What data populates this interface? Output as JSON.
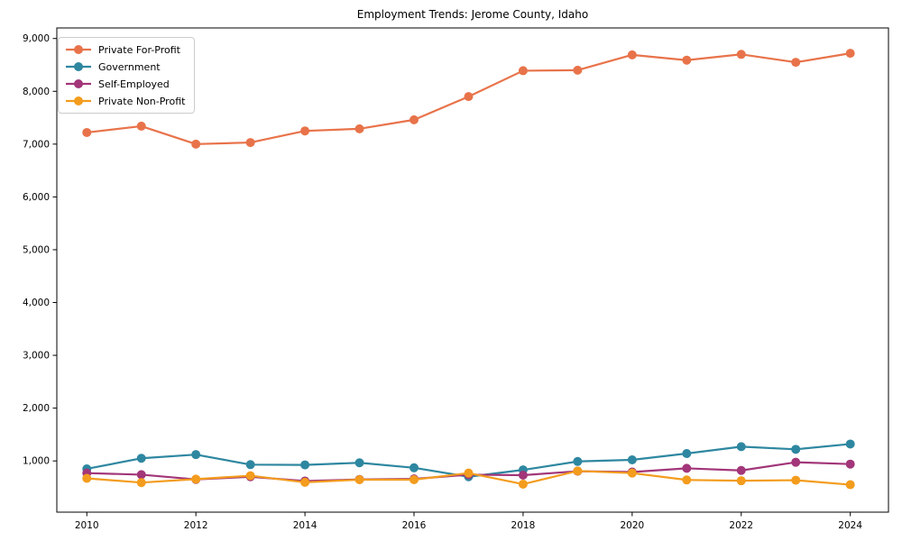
{
  "chart_data": {
    "type": "line",
    "title": "Employment Trends: Jerome County, Idaho",
    "xlabel": "",
    "ylabel": "",
    "x": [
      2010,
      2011,
      2012,
      2013,
      2014,
      2015,
      2016,
      2017,
      2018,
      2019,
      2020,
      2021,
      2022,
      2023,
      2024
    ],
    "series": [
      {
        "name": "Private For-Profit",
        "color": "#e8734a",
        "values": [
          7220,
          7340,
          7000,
          7030,
          7250,
          7290,
          7460,
          7900,
          8390,
          8400,
          8690,
          8590,
          8700,
          8550,
          8720
        ]
      },
      {
        "name": "Government",
        "color": "#2e87a0",
        "values": [
          850,
          1050,
          1120,
          930,
          925,
          965,
          870,
          700,
          830,
          990,
          1020,
          1140,
          1270,
          1220,
          1320
        ]
      },
      {
        "name": "Self-Employed",
        "color": "#a23679",
        "values": [
          770,
          740,
          650,
          700,
          620,
          650,
          660,
          740,
          730,
          805,
          790,
          860,
          820,
          975,
          940
        ]
      },
      {
        "name": "Private Non-Profit",
        "color": "#f39c1d",
        "values": [
          670,
          590,
          655,
          720,
          595,
          645,
          645,
          770,
          560,
          810,
          770,
          640,
          625,
          635,
          550
        ]
      }
    ],
    "xticks": [
      2010,
      2012,
      2014,
      2016,
      2018,
      2020,
      2022,
      2024
    ],
    "yticks": [
      1000,
      2000,
      3000,
      4000,
      5000,
      6000,
      7000,
      8000,
      9000
    ],
    "ytick_labels": [
      "1,000",
      "2,000",
      "3,000",
      "4,000",
      "5,000",
      "6,000",
      "7,000",
      "8,000",
      "9,000"
    ],
    "xlim": [
      2009.45,
      2024.7
    ],
    "ylim": [
      30,
      9200
    ],
    "grid": false,
    "legend_position": "upper-left",
    "axis_color": "#000000",
    "background_color": "#ffffff"
  }
}
